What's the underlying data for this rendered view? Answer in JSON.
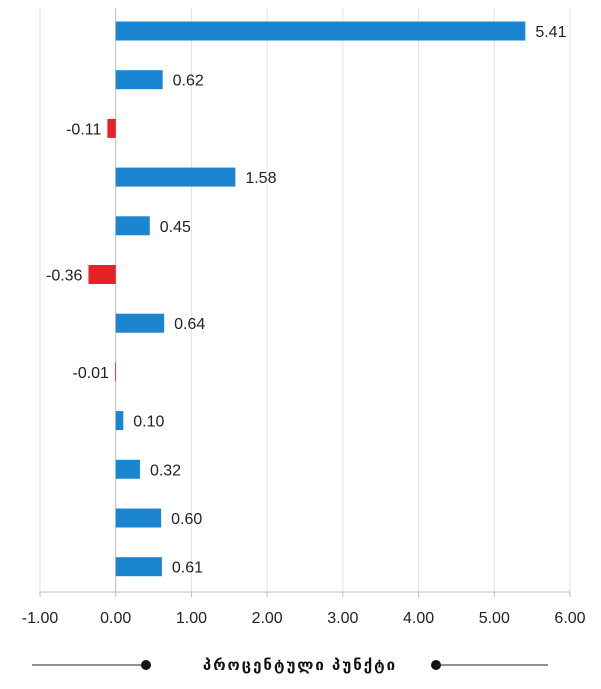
{
  "chart_data": {
    "type": "bar",
    "orientation": "horizontal",
    "categories": [
      "",
      "",
      "",
      "",
      "",
      "",
      "",
      "",
      "",
      "",
      "",
      ""
    ],
    "values": [
      5.41,
      0.62,
      -0.11,
      1.58,
      0.45,
      -0.36,
      0.64,
      -0.01,
      0.1,
      0.32,
      0.6,
      0.61
    ],
    "data_labels": [
      "5.41",
      "0.62",
      "-0.11",
      "1.58",
      "0.45",
      "-0.36",
      "0.64",
      "-0.01",
      "0.10",
      "0.32",
      "0.60",
      "0.61"
    ],
    "xlim": [
      -1.0,
      6.0
    ],
    "x_ticks": [
      -1,
      0,
      1,
      2,
      3,
      4,
      5,
      6
    ],
    "x_tick_labels": [
      "-1.00",
      "0.00",
      "1.00",
      "2.00",
      "3.00",
      "4.00",
      "5.00",
      "6.00"
    ],
    "xlabel": "პროცენტული პუნქტი",
    "grid": "vertical",
    "colors": {
      "positive": "#1b86cf",
      "negative": "#e62128",
      "grid": "#e3e3e3",
      "axis": "#bdbdbd"
    }
  }
}
